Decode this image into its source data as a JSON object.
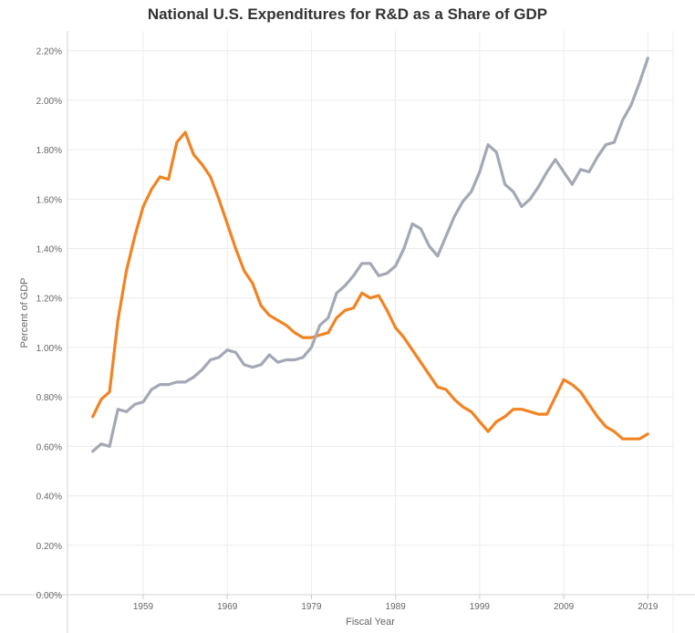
{
  "chart_data": {
    "type": "line",
    "title": "National U.S. Expenditures for R&D as a Share of GDP",
    "xlabel": "Fiscal Year",
    "ylabel": "Percent of GDP",
    "xlim": [
      1950,
      2022
    ],
    "ylim": [
      0,
      0.0228
    ],
    "x_ticks": [
      "1959",
      "1969",
      "1979",
      "1989",
      "1999",
      "2009",
      "2019"
    ],
    "x_tick_values": [
      1959,
      1969,
      1979,
      1989,
      1999,
      2009,
      2019
    ],
    "y_ticks": [
      "0.00%",
      "0.20%",
      "0.40%",
      "0.60%",
      "0.80%",
      "1.00%",
      "1.20%",
      "1.40%",
      "1.60%",
      "1.80%",
      "2.00%",
      "2.20%"
    ],
    "y_tick_values": [
      0,
      0.002,
      0.004,
      0.006,
      0.008,
      0.01,
      0.012,
      0.014,
      0.016,
      0.018,
      0.02,
      0.022
    ],
    "grid": true,
    "series": [
      {
        "color": "#f28322",
        "x": [
          1953,
          1954,
          1955,
          1956,
          1957,
          1958,
          1959,
          1960,
          1961,
          1962,
          1963,
          1964,
          1965,
          1966,
          1967,
          1968,
          1969,
          1970,
          1971,
          1972,
          1973,
          1974,
          1975,
          1976,
          1977,
          1978,
          1979,
          1980,
          1981,
          1982,
          1983,
          1984,
          1985,
          1986,
          1987,
          1988,
          1989,
          1990,
          1991,
          1992,
          1993,
          1994,
          1995,
          1996,
          1997,
          1998,
          1999,
          2000,
          2001,
          2002,
          2003,
          2004,
          2005,
          2006,
          2007,
          2008,
          2009,
          2010,
          2011,
          2012,
          2013,
          2014,
          2015,
          2016,
          2017,
          2018,
          2019
        ],
        "y": [
          0.0072,
          0.0079,
          0.0082,
          0.0111,
          0.0131,
          0.0145,
          0.0157,
          0.0164,
          0.0169,
          0.0168,
          0.0183,
          0.0187,
          0.0178,
          0.0174,
          0.0169,
          0.016,
          0.015,
          0.014,
          0.0131,
          0.0126,
          0.0117,
          0.0113,
          0.0111,
          0.0109,
          0.0106,
          0.0104,
          0.0104,
          0.0105,
          0.0106,
          0.0112,
          0.0115,
          0.0116,
          0.0122,
          0.012,
          0.0121,
          0.0115,
          0.0108,
          0.0104,
          0.0099,
          0.0094,
          0.0089,
          0.0084,
          0.0083,
          0.0079,
          0.0076,
          0.0074,
          0.007,
          0.0066,
          0.007,
          0.0072,
          0.0075,
          0.0075,
          0.0074,
          0.0073,
          0.0073,
          0.008,
          0.0087,
          0.0085,
          0.0082,
          0.0077,
          0.0072,
          0.0068,
          0.0066,
          0.0063,
          0.0063,
          0.0063,
          0.0065
        ]
      },
      {
        "color": "#a3a8b4",
        "x": [
          1953,
          1954,
          1955,
          1956,
          1957,
          1958,
          1959,
          1960,
          1961,
          1962,
          1963,
          1964,
          1965,
          1966,
          1967,
          1968,
          1969,
          1970,
          1971,
          1972,
          1973,
          1974,
          1975,
          1976,
          1977,
          1978,
          1979,
          1980,
          1981,
          1982,
          1983,
          1984,
          1985,
          1986,
          1987,
          1988,
          1989,
          1990,
          1991,
          1992,
          1993,
          1994,
          1995,
          1996,
          1997,
          1998,
          1999,
          2000,
          2001,
          2002,
          2003,
          2004,
          2005,
          2006,
          2007,
          2008,
          2009,
          2010,
          2011,
          2012,
          2013,
          2014,
          2015,
          2016,
          2017,
          2018,
          2019
        ],
        "y": [
          0.0058,
          0.0061,
          0.006,
          0.0075,
          0.0074,
          0.0077,
          0.0078,
          0.0083,
          0.0085,
          0.0085,
          0.0086,
          0.0086,
          0.0088,
          0.0091,
          0.0095,
          0.0096,
          0.0099,
          0.0098,
          0.0093,
          0.0092,
          0.0093,
          0.0097,
          0.0094,
          0.0095,
          0.0095,
          0.0096,
          0.01,
          0.0109,
          0.0112,
          0.0122,
          0.0125,
          0.0129,
          0.0134,
          0.0134,
          0.0129,
          0.013,
          0.0133,
          0.014,
          0.015,
          0.0148,
          0.0141,
          0.0137,
          0.0145,
          0.0153,
          0.0159,
          0.0163,
          0.0171,
          0.0182,
          0.0179,
          0.0166,
          0.0163,
          0.0157,
          0.016,
          0.0165,
          0.0171,
          0.0176,
          0.0171,
          0.0166,
          0.0172,
          0.0171,
          0.0177,
          0.0182,
          0.0183,
          0.0192,
          0.0198,
          0.0207,
          0.0217
        ]
      }
    ]
  }
}
